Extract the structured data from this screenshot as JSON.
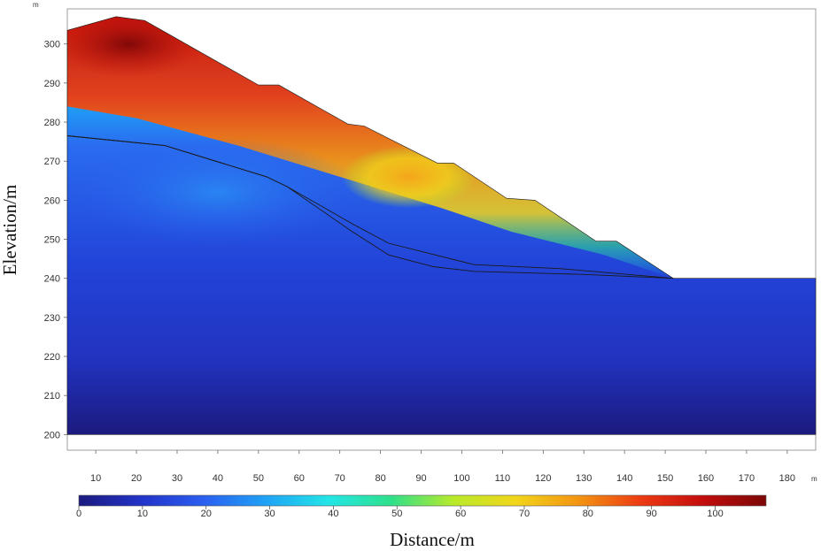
{
  "chart_data": {
    "type": "heatmap",
    "xlabel": "Distance/m",
    "ylabel": "Elevation/m",
    "x_unit": "m",
    "y_unit": "m",
    "xlim": [
      3,
      187
    ],
    "ylim": [
      196,
      309
    ],
    "x_ticks": [
      10,
      20,
      30,
      40,
      50,
      60,
      70,
      80,
      90,
      100,
      110,
      120,
      130,
      140,
      150,
      160,
      170,
      180
    ],
    "y_ticks": [
      200,
      210,
      220,
      230,
      240,
      250,
      260,
      270,
      280,
      290,
      300
    ],
    "colorbar": {
      "min": 0,
      "max": 108,
      "ticks": [
        0,
        10,
        20,
        30,
        40,
        50,
        60,
        70,
        80,
        90,
        100
      ],
      "colors": [
        "#1b1a7e",
        "#2233c8",
        "#2a5ff0",
        "#1fa3f5",
        "#22e6e6",
        "#2fe08a",
        "#b8ea2a",
        "#f2d51a",
        "#f39412",
        "#ec3a12",
        "#c20d0d",
        "#7c0707"
      ]
    },
    "model_outline": [
      [
        3,
        303.5
      ],
      [
        15,
        307
      ],
      [
        22,
        306
      ],
      [
        50,
        289.5
      ],
      [
        55,
        289.5
      ],
      [
        72,
        279.5
      ],
      [
        76,
        279
      ],
      [
        94,
        269.5
      ],
      [
        98,
        269.5
      ],
      [
        111,
        260.5
      ],
      [
        118,
        260
      ],
      [
        133,
        249.5
      ],
      [
        138,
        249.5
      ],
      [
        152,
        240
      ],
      [
        187,
        240
      ],
      [
        187,
        200
      ],
      [
        3,
        200
      ]
    ],
    "interface_lines": [
      [
        [
          3,
          276.5
        ],
        [
          27,
          274
        ],
        [
          52,
          266
        ],
        [
          57,
          263.5
        ],
        [
          73,
          254
        ],
        [
          82,
          249
        ],
        [
          103,
          243.5
        ],
        [
          124,
          242.5
        ],
        [
          152,
          240
        ]
      ],
      [
        [
          3,
          276.5
        ],
        [
          27,
          274
        ],
        [
          52,
          266
        ],
        [
          57,
          263.5
        ],
        [
          73,
          252
        ],
        [
          82,
          246
        ],
        [
          93,
          243
        ],
        [
          103,
          241.8
        ],
        [
          130,
          241
        ],
        [
          152,
          240
        ]
      ]
    ]
  }
}
